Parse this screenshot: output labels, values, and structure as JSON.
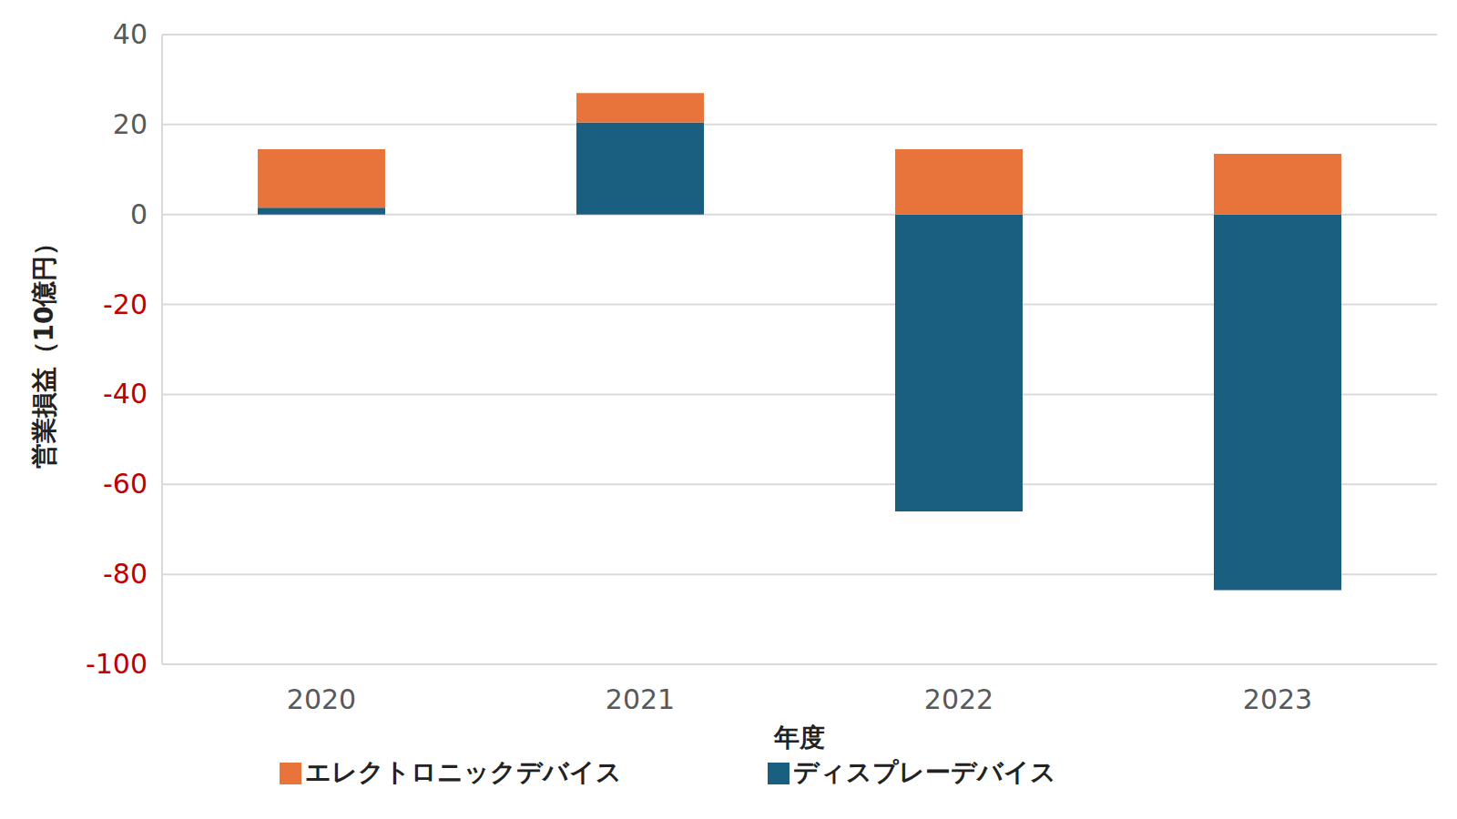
{
  "chart_data": {
    "type": "bar",
    "stacked": true,
    "x_label": "年度",
    "y_label": "営業損益（10億円）",
    "categories": [
      "2020",
      "2021",
      "2022",
      "2023"
    ],
    "series": [
      {
        "name": "ディスプレーデバイス",
        "color": "#1a5e80",
        "values": [
          1.5,
          20.5,
          -66,
          -83.5
        ]
      },
      {
        "name": "エレクトロニックデバイス",
        "color": "#e8743b",
        "values": [
          13,
          6.5,
          14.5,
          13.5
        ]
      }
    ],
    "ylim": [
      -100,
      40
    ],
    "yticks": [
      -100,
      -80,
      -60,
      -40,
      -20,
      0,
      20,
      40
    ],
    "grid": true,
    "legend": "bottom"
  }
}
